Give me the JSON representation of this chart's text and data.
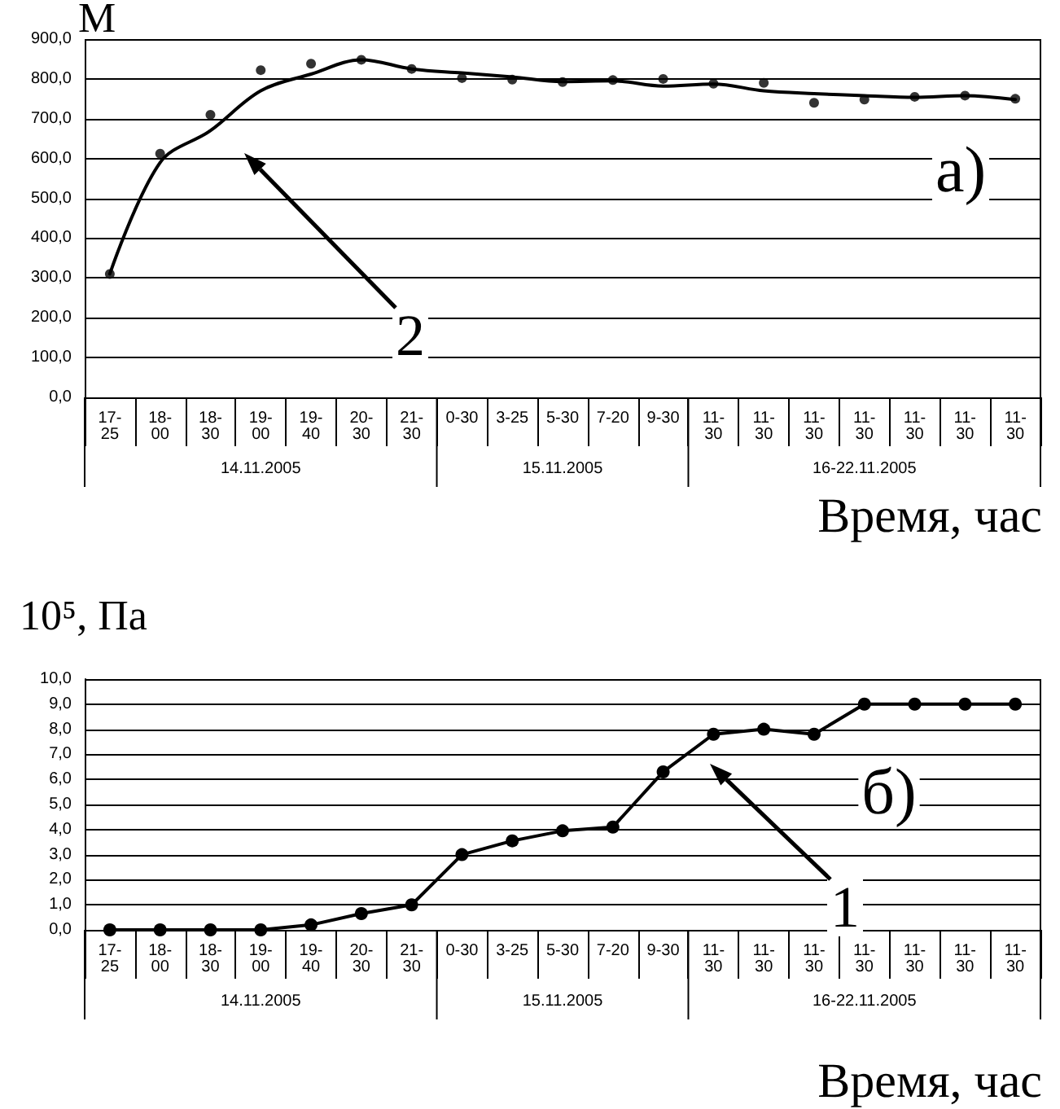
{
  "chart_data": [
    {
      "type": "scatter",
      "ylabel": "М",
      "xlabel": "Время, час",
      "categories": [
        "17-25",
        "18-00",
        "18-30",
        "19-00",
        "19-40",
        "20-30",
        "21-30",
        "0-30",
        "3-25",
        "5-30",
        "7-20",
        "9-30",
        "11-30",
        "11-30",
        "11-30",
        "11-30",
        "11-30",
        "11-30",
        "11-30"
      ],
      "series": [
        {
          "type": "scatter",
          "color": "#000000",
          "marker": "circle",
          "values": [
            310,
            612,
            710,
            822,
            838,
            848,
            825,
            802,
            798,
            792,
            797,
            800,
            788,
            790,
            740,
            748,
            755,
            758,
            750
          ]
        },
        {
          "type": "line",
          "color": "#000000",
          "marker": "none",
          "values": [
            310,
            590,
            670,
            770,
            812,
            848,
            825,
            815,
            805,
            793,
            795,
            782,
            787,
            770,
            763,
            758,
            754,
            758,
            748
          ]
        }
      ],
      "ylim": [
        0,
        900
      ],
      "yticks": [
        {
          "value": 0,
          "label": "0,0"
        },
        {
          "value": 100,
          "label": "100,0"
        },
        {
          "value": 200,
          "label": "200,0"
        },
        {
          "value": 300,
          "label": "300,0"
        },
        {
          "value": 400,
          "label": "400,0"
        },
        {
          "value": 500,
          "label": "500,0"
        },
        {
          "value": 600,
          "label": "600,0"
        },
        {
          "value": 700,
          "label": "700,0"
        },
        {
          "value": 800,
          "label": "800,0"
        },
        {
          "value": 900,
          "label": "900,0"
        }
      ],
      "grid": "y",
      "annotations": [
        "а)",
        "2",
        "14.11.2005",
        "15.11.2005",
        "16-22.11.2005"
      ]
    },
    {
      "type": "line",
      "ylabel": "10⁵, Па",
      "xlabel": "Время, час",
      "categories": [
        "17-25",
        "18-00",
        "18-30",
        "19-00",
        "19-40",
        "20-30",
        "21-30",
        "0-30",
        "3-25",
        "5-30",
        "7-20",
        "9-30",
        "11-30",
        "11-30",
        "11-30",
        "11-30",
        "11-30",
        "11-30",
        "11-30"
      ],
      "series": [
        {
          "color": "#000000",
          "values": [
            0,
            0,
            0,
            0,
            0.2,
            0.65,
            1.0,
            3.0,
            3.55,
            3.95,
            4.1,
            6.3,
            7.8,
            8.0,
            7.8,
            9.0,
            9.0,
            9.0,
            9.0
          ]
        }
      ],
      "marker": "circle",
      "line_style": "solid",
      "ylim": [
        0,
        10
      ],
      "yticks": [
        {
          "value": 0,
          "label": "0,0"
        },
        {
          "value": 1,
          "label": "1,0"
        },
        {
          "value": 2,
          "label": "2,0"
        },
        {
          "value": 3,
          "label": "3,0"
        },
        {
          "value": 4,
          "label": "4,0"
        },
        {
          "value": 5,
          "label": "5,0"
        },
        {
          "value": 6,
          "label": "6,0"
        },
        {
          "value": 7,
          "label": "7,0"
        },
        {
          "value": 8,
          "label": "8,0"
        },
        {
          "value": 9,
          "label": "9,0"
        },
        {
          "value": 10,
          "label": "10,0"
        }
      ],
      "grid": "y",
      "annotations": [
        "б)",
        "1",
        "14.11.2005",
        "15.11.2005",
        "16-22.11.2005"
      ]
    }
  ]
}
